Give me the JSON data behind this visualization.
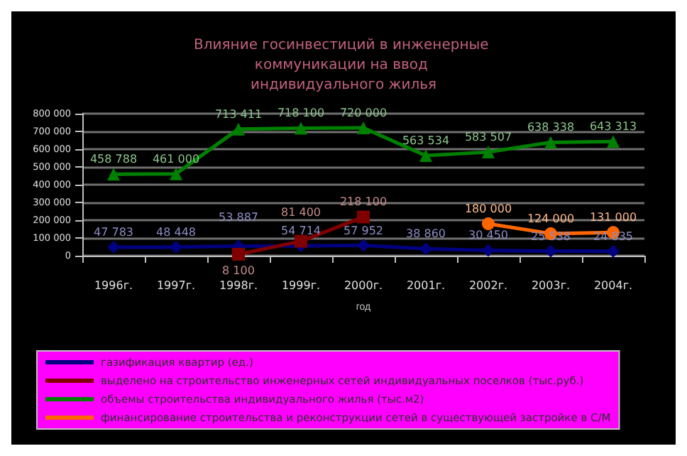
{
  "chart_data": {
    "type": "line",
    "title": "Влияние госинвестиций в инженерные коммуникации на ввод индивидуального жилья",
    "xlabel": "год",
    "categories": [
      "1996г.",
      "1997г.",
      "1998г.",
      "1999г.",
      "2000г.",
      "2001г.",
      "2002г.",
      "2003г.",
      "2004г."
    ],
    "series": [
      {
        "name": "газификация квартир (ед.)",
        "color": "#000080",
        "marker": "diamond",
        "values": [
          47783,
          48448,
          53887,
          54714,
          57952,
          38860,
          30450,
          25538,
          24835
        ]
      },
      {
        "name": "выделено на строительство инженерных сетей индивидуальных поселков (тыс.руб.)",
        "color": "#800000",
        "marker": "square",
        "values": [
          null,
          null,
          8100,
          81400,
          218100,
          null,
          null,
          null,
          null
        ]
      },
      {
        "name": "объемы строительства индивидуального жилья (тыс.м2)",
        "color": "#008000",
        "marker": "triangle",
        "values": [
          458788,
          461000,
          713411,
          718100,
          720000,
          563534,
          583507,
          638338,
          643313
        ]
      },
      {
        "name": "финансирование строительства и реконструкции сетей в существующей застройке в С/М",
        "color": "#ff6600",
        "marker": "circle",
        "values": [
          null,
          null,
          null,
          null,
          null,
          null,
          180000,
          124000,
          131000
        ]
      }
    ],
    "ylim": [
      0,
      800000
    ],
    "yticks": [
      0,
      100000,
      200000,
      300000,
      400000,
      500000,
      600000,
      700000,
      800000
    ],
    "grid": "y",
    "legend": "bottom",
    "data_labels": true
  }
}
